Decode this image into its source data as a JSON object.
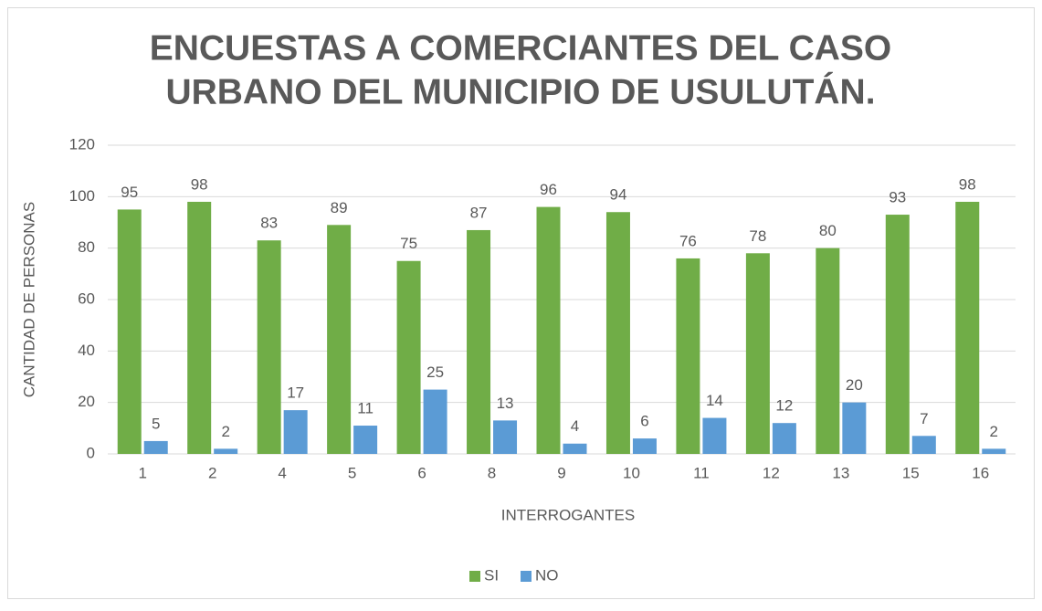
{
  "chart_data": {
    "type": "bar",
    "title": [
      "ENCUESTAS A COMERCIANTES DEL CASO",
      "URBANO DEL MUNICIPIO DE USULUTÁN."
    ],
    "x_label": "INTERROGANTES",
    "y_label": "CANTIDAD DE PERSONAS",
    "categories": [
      "1",
      "2",
      "4",
      "5",
      "6",
      "8",
      "9",
      "10",
      "11",
      "12",
      "13",
      "15",
      "16"
    ],
    "series": [
      {
        "name": "SI",
        "color": "#70ad47",
        "values": [
          95,
          98,
          83,
          89,
          75,
          87,
          96,
          94,
          76,
          78,
          80,
          93,
          98
        ]
      },
      {
        "name": "NO",
        "color": "#5b9bd5",
        "values": [
          5,
          2,
          17,
          11,
          25,
          13,
          4,
          6,
          14,
          12,
          20,
          7,
          2
        ]
      }
    ],
    "ylim": [
      0,
      120
    ],
    "yticks": [
      0,
      20,
      40,
      60,
      80,
      100,
      120
    ],
    "grid": true,
    "legend": "bottom"
  }
}
